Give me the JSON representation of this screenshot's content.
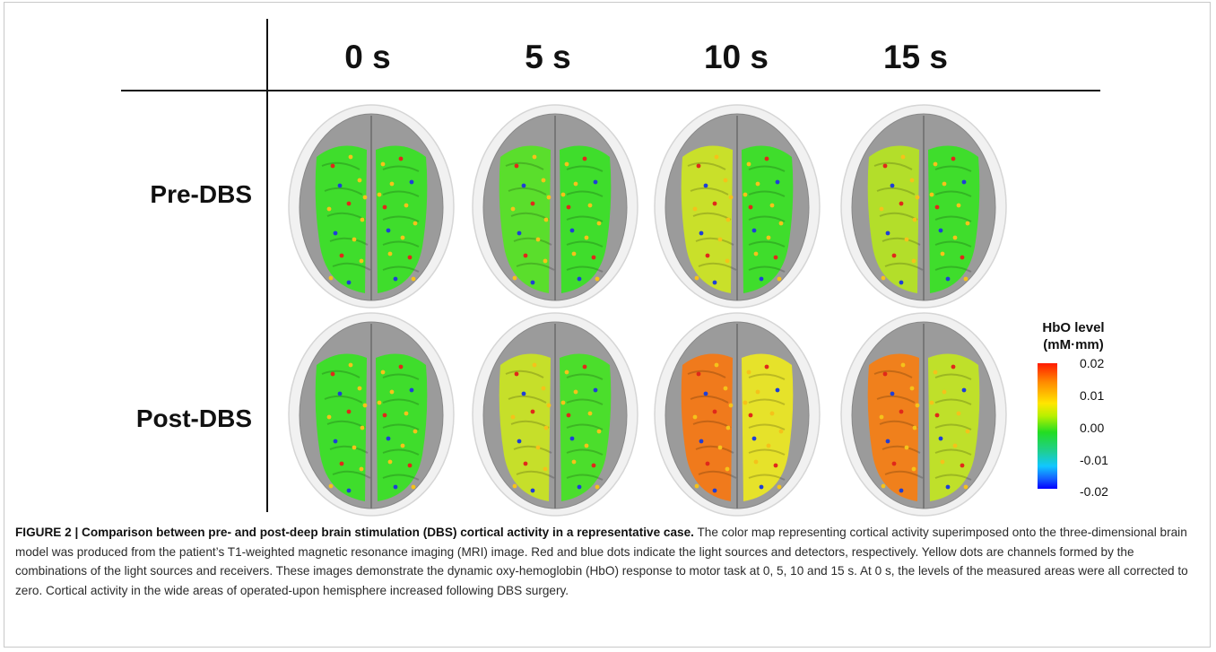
{
  "figure": {
    "columns": [
      "0 s",
      "5 s",
      "10 s",
      "15 s"
    ],
    "rows": [
      "Pre-DBS",
      "Post-DBS"
    ],
    "colorbar": {
      "title_line1": "HbO level",
      "title_line2": "(mM·mm)",
      "ticks": [
        "0.02",
        "0.01",
        "0.00",
        "-0.01",
        "-0.02"
      ],
      "scale_colors": [
        "#ff1a00",
        "#ffe600",
        "#22dd22",
        "#11c7ff",
        "#0000ff"
      ]
    },
    "brain_maps": [
      {
        "row": "Pre-DBS",
        "time": "0 s",
        "left": "#3fdd2c",
        "right": "#3fdd2c"
      },
      {
        "row": "Pre-DBS",
        "time": "5 s",
        "left": "#5ade2c",
        "right": "#3fdd2c"
      },
      {
        "row": "Pre-DBS",
        "time": "10 s",
        "left": "#c9e02a",
        "right": "#3fdd2c"
      },
      {
        "row": "Pre-DBS",
        "time": "15 s",
        "left": "#b3de2a",
        "right": "#3fdd2c"
      },
      {
        "row": "Post-DBS",
        "time": "0 s",
        "left": "#3fdd2c",
        "right": "#3fdd2c"
      },
      {
        "row": "Post-DBS",
        "time": "5 s",
        "left": "#c6df2a",
        "right": "#4bde2c"
      },
      {
        "row": "Post-DBS",
        "time": "10 s",
        "left": "#f07a1c",
        "right": "#e6e22a"
      },
      {
        "row": "Post-DBS",
        "time": "15 s",
        "left": "#f0801c",
        "right": "#bfe02a"
      }
    ]
  },
  "caption": {
    "label": "FIGURE 2 | Comparison between pre- and post-deep brain stimulation (DBS) cortical activity in a representative case.",
    "text": "The color map representing cortical activity superimposed onto the three-dimensional brain model was produced from the patient’s T1-weighted magnetic resonance imaging (MRI) image. Red and blue dots indicate the light sources and detectors, respectively. Yellow dots are channels formed by the combinations of the light sources and receivers. These images demonstrate the dynamic oxy-hemoglobin (HbO) response to motor task at 0, 5, 10 and 15 s. At 0 s, the levels of the measured areas were all corrected to zero. Cortical activity in the wide areas of operated-upon hemisphere increased following DBS surgery."
  }
}
